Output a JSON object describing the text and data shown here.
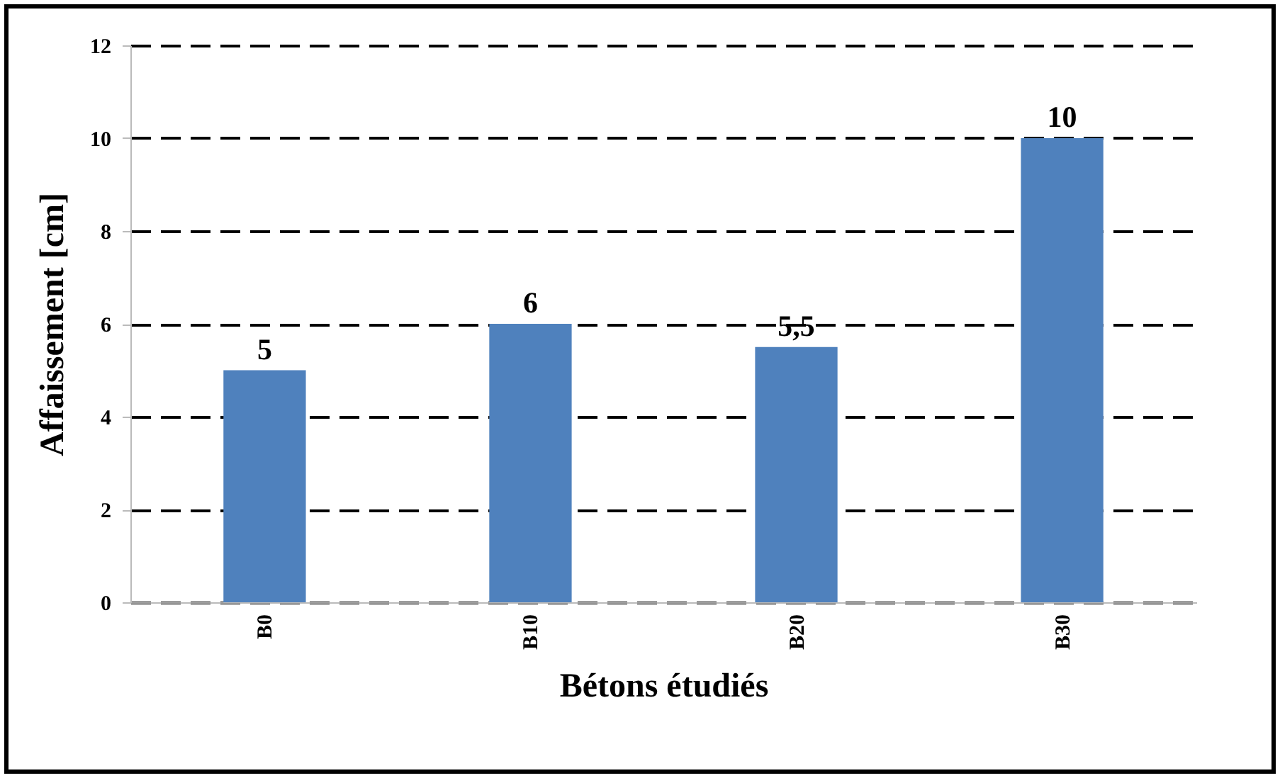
{
  "chart_data": {
    "type": "bar",
    "xlabel": "Bétons étudiés",
    "ylabel": "Affaissement [cm]",
    "categories": [
      "B0",
      "B10",
      "B20",
      "B30"
    ],
    "values": [
      5,
      6,
      5.5,
      10
    ],
    "value_labels": [
      "5",
      "6",
      "5,5",
      "10"
    ],
    "color": "#4f81bd",
    "ylim": [
      0,
      12
    ],
    "yticks": [
      0,
      2,
      4,
      6,
      8,
      10,
      12
    ],
    "grid": "y"
  }
}
